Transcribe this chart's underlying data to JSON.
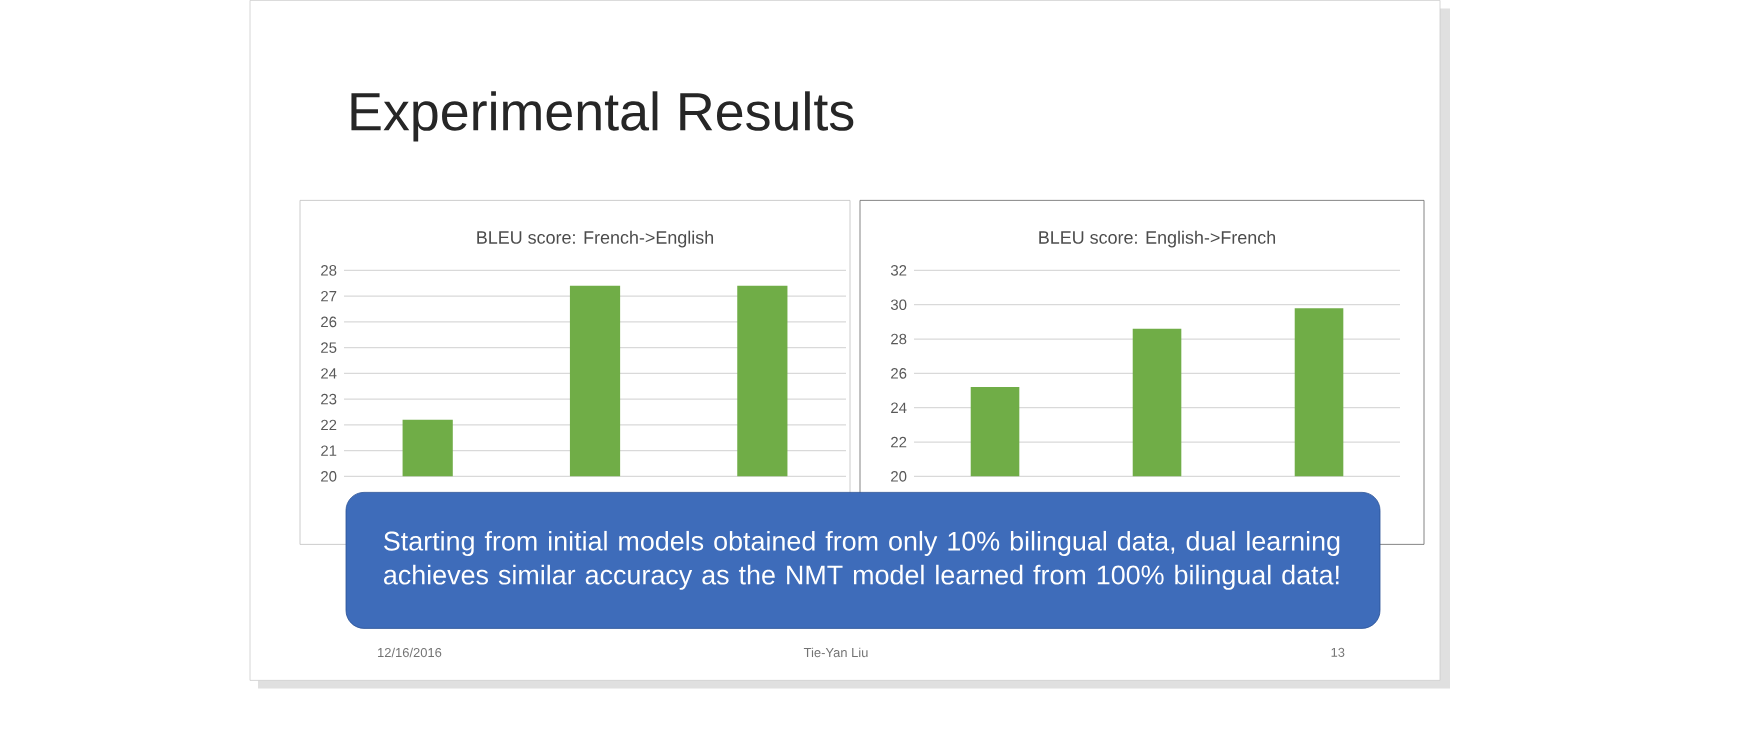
{
  "chart_data": [
    {
      "type": "bar",
      "title": "BLEU score: French->English",
      "categories": [
        null,
        null,
        null
      ],
      "values": [
        22.2,
        27.4,
        27.4
      ],
      "color": "#70ad47",
      "ylim": [
        20,
        28
      ],
      "yticks": [
        20,
        21,
        22,
        23,
        24,
        25,
        26,
        27,
        28
      ],
      "grid": "y"
    },
    {
      "type": "bar",
      "title": "BLEU score: English->French",
      "categories": [
        null,
        null,
        null
      ],
      "values": [
        25.2,
        28.6,
        29.8
      ],
      "color": "#70ad47",
      "ylim": [
        20,
        32
      ],
      "yticks": [
        20,
        22,
        24,
        26,
        28,
        30,
        32
      ],
      "grid": "y"
    },
    {
      "type": "other",
      "title": "Experimental Results",
      "annotations": [
        "Starting from initial models obtained from only 10% bilingual data, dual learning achieves similar accuracy as the NMT model learned from 100% bilingual data!",
        "12/16/2016",
        "Tie-Yan Liu",
        "13"
      ]
    }
  ]
}
